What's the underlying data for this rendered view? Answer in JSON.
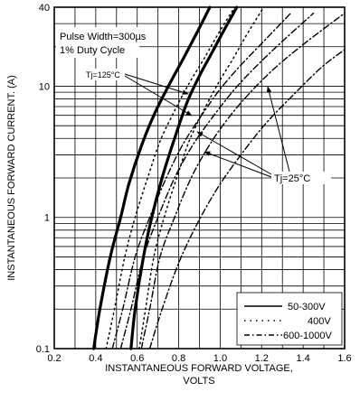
{
  "chart_data": {
    "type": "line",
    "xlabel_line1": "INSTANTANEOUS FORWARD VOLTAGE,",
    "xlabel_line2": "VOLTS",
    "ylabel": "INSTANTANEOUS FORWARD CURRENT. (A)",
    "xlim": [
      0.2,
      1.6
    ],
    "ylim": [
      0.1,
      40
    ],
    "yscale": "log",
    "x_ticks": [
      "0.2",
      "0.4",
      "0.6",
      "0.8",
      "1.0",
      "1.2",
      "1.4",
      "1.6"
    ],
    "y_ticks": [
      "0.1",
      "1",
      "10",
      "40"
    ],
    "grid": true,
    "annotations": {
      "conditions_1": "Pulse Width=300µs",
      "conditions_2": "1% Duty Cycle",
      "tj_hot": "Tj=125°C",
      "tj_cold": "Tj=25°C"
    },
    "legend": {
      "placement": "bottom-right",
      "items": [
        {
          "label": "50-300V",
          "style": "solid"
        },
        {
          "label": "400V",
          "style": "dotted"
        },
        {
          "label": "600-1000V",
          "style": "dashdot"
        }
      ]
    },
    "series": [
      {
        "group": "50-300V",
        "tj": "125",
        "style": "solid",
        "x": [
          0.39,
          0.42,
          0.47,
          0.52,
          0.56,
          0.62,
          0.68,
          0.75,
          0.82,
          0.89,
          0.95
        ],
        "y": [
          0.1,
          0.2,
          0.5,
          1.0,
          1.8,
          3.5,
          6.0,
          10.0,
          16.0,
          26.0,
          40.0
        ]
      },
      {
        "group": "50-300V",
        "tj": "25",
        "style": "solid",
        "x": [
          0.57,
          0.59,
          0.63,
          0.67,
          0.72,
          0.78,
          0.84,
          0.9,
          0.96,
          1.02,
          1.08
        ],
        "y": [
          0.1,
          0.2,
          0.5,
          1.0,
          2.0,
          4.0,
          7.5,
          12.0,
          18.0,
          27.0,
          40.0
        ]
      },
      {
        "group": "400V",
        "tj": "125",
        "style": "dotted",
        "x": [
          0.45,
          0.49,
          0.54,
          0.59,
          0.65,
          0.71,
          0.78,
          0.85,
          0.92,
          0.99,
          1.07
        ],
        "y": [
          0.1,
          0.2,
          0.5,
          1.0,
          2.0,
          3.8,
          6.5,
          10.5,
          16.0,
          25.0,
          40.0
        ]
      },
      {
        "group": "400V",
        "tj": "25",
        "style": "dotted",
        "x": [
          0.61,
          0.64,
          0.68,
          0.73,
          0.79,
          0.85,
          0.92,
          0.99,
          1.06,
          1.13,
          1.21
        ],
        "y": [
          0.1,
          0.2,
          0.5,
          1.0,
          2.0,
          3.8,
          6.5,
          10.5,
          16.0,
          25.0,
          40.0
        ]
      },
      {
        "group": "600-1000V",
        "tj": "125",
        "style": "dashdot",
        "x": [
          0.48,
          0.53,
          0.59,
          0.66,
          0.74,
          0.82,
          0.91,
          1.0,
          1.1,
          1.21,
          1.34
        ],
        "y": [
          0.1,
          0.2,
          0.5,
          1.0,
          2.0,
          3.6,
          6.0,
          9.5,
          14.5,
          22.0,
          36.0
        ]
      },
      {
        "group": "600-1000V",
        "tj": "125b",
        "style": "dashdot",
        "x": [
          0.52,
          0.57,
          0.63,
          0.7,
          0.78,
          0.87,
          0.97,
          1.07,
          1.18,
          1.3,
          1.45
        ],
        "y": [
          0.1,
          0.2,
          0.5,
          1.0,
          2.0,
          3.6,
          6.0,
          9.5,
          14.5,
          22.0,
          36.0
        ]
      },
      {
        "group": "600-1000V",
        "tj": "25",
        "style": "dashdot",
        "x": [
          0.62,
          0.66,
          0.71,
          0.78,
          0.86,
          0.95,
          1.05,
          1.16,
          1.28,
          1.42,
          1.6
        ],
        "y": [
          0.1,
          0.2,
          0.5,
          1.0,
          2.0,
          3.6,
          6.0,
          9.5,
          14.5,
          22.0,
          36.0
        ]
      },
      {
        "group": "600-1000V",
        "tj": "25b",
        "style": "dashdot",
        "x": [
          0.66,
          0.72,
          0.8,
          0.89,
          0.99,
          1.1,
          1.22,
          1.35,
          1.49,
          1.6
        ],
        "y": [
          0.1,
          0.2,
          0.45,
          0.9,
          1.7,
          3.0,
          5.2,
          8.5,
          14.0,
          19.0
        ]
      }
    ]
  }
}
